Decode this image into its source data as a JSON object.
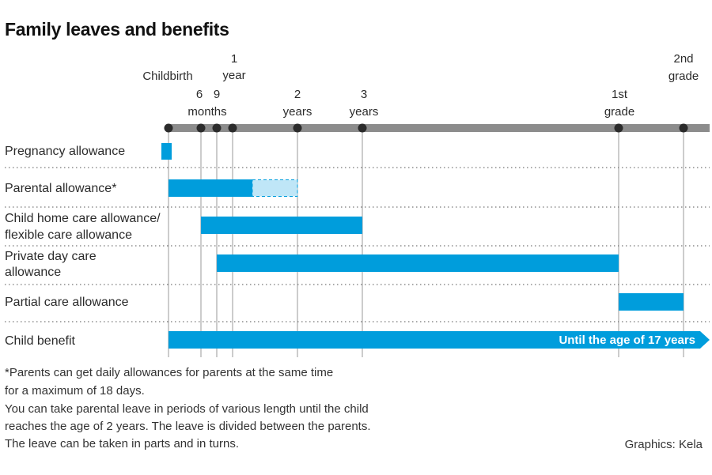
{
  "title": "Family leaves and benefits",
  "chart_data": {
    "type": "timeline",
    "milestones": [
      {
        "id": "birth",
        "lines": [
          "Childbirth"
        ]
      },
      {
        "id": "m6",
        "lines": [
          "6"
        ]
      },
      {
        "id": "m9",
        "lines": [
          "9"
        ]
      },
      {
        "id": "y1",
        "lines": [
          "1",
          "year"
        ]
      },
      {
        "id": "y2",
        "lines": [
          "2",
          "years"
        ]
      },
      {
        "id": "y3",
        "lines": [
          "3",
          "years"
        ]
      },
      {
        "id": "g1",
        "lines": [
          "1st",
          "grade"
        ]
      },
      {
        "id": "g2",
        "lines": [
          "2nd",
          "grade"
        ]
      }
    ],
    "months_label": "months",
    "rows": [
      {
        "label": [
          "Pregnancy allowance"
        ],
        "start": "before_birth",
        "end": "birth"
      },
      {
        "label": [
          "Parental allowance*"
        ],
        "start": "birth",
        "end": "about 1.3 years",
        "extension_end": "y2"
      },
      {
        "label": [
          "Child home care allowance/",
          "flexible care allowance"
        ],
        "start": "m6",
        "end": "y3"
      },
      {
        "label": [
          "Private day care",
          "allowance"
        ],
        "start": "m9",
        "end": "g1"
      },
      {
        "label": [
          "Partial care allowance"
        ],
        "start": "g1",
        "end": "g2"
      },
      {
        "label": [
          "Child benefit"
        ],
        "start": "birth",
        "end": "Until the age of 17 years",
        "bar_text": "Until the age of 17 years"
      }
    ],
    "colors": {
      "bar": "#009ddc",
      "extension": "#bfe6f7",
      "axis": "#8c8c8c",
      "dot": "#2b2b2b",
      "grid": "#9a9a9a"
    }
  },
  "notes": [
    "*Parents can get daily allowances for parents at the same time",
    "for a maximum of 18 days.",
    "You can take parental leave in periods of various length until the child",
    "reaches the age of 2 years. The leave is divided between the parents.",
    "The leave can be taken in parts and in turns."
  ],
  "source": "Graphics: Kela"
}
